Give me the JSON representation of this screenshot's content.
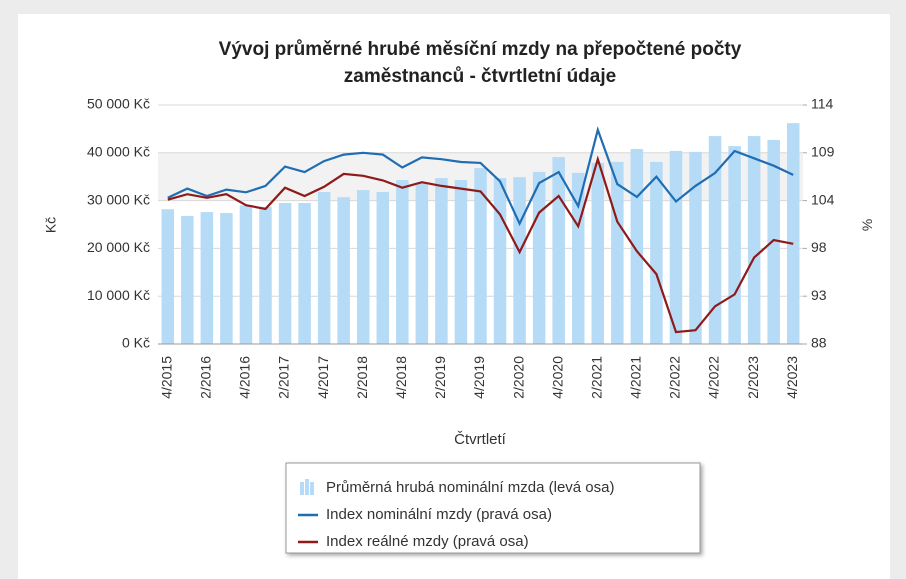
{
  "chart_data": {
    "type": "bar-line",
    "title": "Vývoj průměrné hrubé měsíční mzdy na přepočtené počty",
    "subtitle": "zaměstnanců - čtvrtletní údaje",
    "x_label": "Čtvrtletí",
    "y_label": "Kč",
    "y2_label": "%",
    "categories": [
      "4/2015",
      null,
      "2/2016",
      null,
      "4/2016",
      null,
      "2/2017",
      null,
      "4/2017",
      null,
      "2/2018",
      null,
      "4/2018",
      null,
      "2/2019",
      null,
      "4/2019",
      null,
      "2/2020",
      null,
      "4/2020",
      null,
      "2/2021",
      null,
      "4/2021",
      null,
      "2/2022",
      null,
      "4/2022",
      null,
      "2/2023",
      null,
      "4/2023"
    ],
    "series": [
      {
        "name": "Průměrná hrubá nominální mzda (levá osa)",
        "type": "bar",
        "color": "#b5dbf7",
        "values": [
          28200,
          26800,
          27600,
          27400,
          29000,
          28700,
          29500,
          29500,
          31800,
          30700,
          32200,
          31800,
          34300,
          33700,
          34700,
          34300,
          36800,
          34700,
          34900,
          36000,
          39100,
          35800,
          37900,
          38100,
          40800,
          38100,
          40400,
          40200,
          43500,
          41400,
          43500,
          42700,
          46200
        ]
      },
      {
        "name": "Index nominální mzdy (pravá osa)",
        "type": "line",
        "axis": "y2",
        "color": "#1f6db3",
        "values": [
          103.9,
          104.9,
          104.1,
          104.8,
          104.5,
          105.2,
          107.3,
          106.7,
          107.9,
          108.6,
          108.8,
          108.6,
          107.2,
          108.3,
          108.1,
          107.8,
          107.7,
          105.7,
          101.1,
          105.5,
          106.7,
          103.0,
          111.3,
          105.4,
          104.0,
          106.2,
          103.5,
          105.2,
          106.6,
          109.0,
          108.2,
          107.4,
          106.4
        ]
      },
      {
        "name": "Index reálné mzdy (pravá osa)",
        "type": "line",
        "axis": "y2",
        "color": "#8e1a1a",
        "values": [
          103.7,
          104.3,
          103.9,
          104.3,
          103.1,
          102.7,
          105.0,
          104.1,
          105.1,
          106.5,
          106.3,
          105.8,
          105.0,
          105.6,
          105.2,
          104.9,
          104.6,
          102.1,
          98.0,
          102.3,
          104.1,
          100.8,
          108.1,
          101.3,
          98.1,
          95.6,
          89.3,
          89.5,
          92.1,
          93.4,
          97.4,
          99.3,
          98.9
        ]
      }
    ],
    "ylim": [
      0,
      50000
    ],
    "yticks": [
      {
        "value": 0,
        "label": "0 Kč"
      },
      {
        "value": 10000,
        "label": "10 000 Kč"
      },
      {
        "value": 20000,
        "label": "20 000 Kč"
      },
      {
        "value": 30000,
        "label": "30 000 Kč"
      },
      {
        "value": 40000,
        "label": "40 000 Kč"
      },
      {
        "value": 50000,
        "label": "50 000 Kč"
      }
    ],
    "y2lim": [
      88,
      114
    ],
    "y2ticks": [
      88,
      {
        "value": 93.2,
        "label": "93"
      },
      {
        "value": 98.4,
        "label": "98"
      },
      {
        "value": 103.6,
        "label": "104"
      },
      {
        "value": 108.8,
        "label": "109"
      },
      114
    ],
    "grid": true,
    "legend": "bottom"
  }
}
